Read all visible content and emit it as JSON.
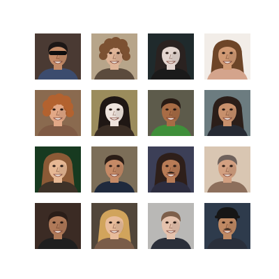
{
  "figure": {
    "rows": 4,
    "cols": 4,
    "tiles": [
      {
        "bg": "#4a3a33",
        "skin": "#c48b68",
        "hair": "#1d1716",
        "shirt": "#3c4c6e",
        "hair_style": "short",
        "glasses": true,
        "cap": false,
        "mustache": false
      },
      {
        "bg": "#b7a58a",
        "skin": "#dfb497",
        "hair": "#7c5132",
        "shirt": "#5b4b3d",
        "hair_style": "curly",
        "glasses": false,
        "cap": false,
        "mustache": false
      },
      {
        "bg": "#1f2a2c",
        "skin": "#e3d5cf",
        "hair": "#2a2220",
        "shirt": "#1a1a1a",
        "hair_style": "long",
        "glasses": false,
        "cap": false,
        "mustache": false
      },
      {
        "bg": "#f2ede8",
        "skin": "#d19a74",
        "hair": "#6d4528",
        "shirt": "#d4a48c",
        "hair_style": "long",
        "glasses": false,
        "cap": false,
        "mustache": false
      },
      {
        "bg": "#8a6a4f",
        "skin": "#e2a886",
        "hair": "#b3622f",
        "shirt": "#7f5a44",
        "hair_style": "curly",
        "glasses": false,
        "cap": false,
        "mustache": false
      },
      {
        "bg": "#9b8c5c",
        "skin": "#efe4dd",
        "hair": "#1f1714",
        "shirt": "#3a2d24",
        "hair_style": "long",
        "glasses": false,
        "cap": false,
        "mustache": false
      },
      {
        "bg": "#5d5b4b",
        "skin": "#a86c45",
        "hair": "#281b14",
        "shirt": "#3f8f3a",
        "hair_style": "short",
        "glasses": false,
        "cap": false,
        "mustache": false
      },
      {
        "bg": "#6c7c80",
        "skin": "#c8906c",
        "hair": "#2b1e19",
        "shirt": "#262a33",
        "hair_style": "long",
        "glasses": false,
        "cap": false,
        "mustache": false
      },
      {
        "bg": "#173a20",
        "skin": "#e6b894",
        "hair": "#8b5a36",
        "shirt": "#3e3228",
        "hair_style": "long",
        "glasses": false,
        "cap": false,
        "mustache": false
      },
      {
        "bg": "#7c6e58",
        "skin": "#c58a66",
        "hair": "#2a1d16",
        "shirt": "#1f2a3d",
        "hair_style": "short",
        "glasses": false,
        "cap": false,
        "mustache": false
      },
      {
        "bg": "#3c3f57",
        "skin": "#b87b56",
        "hair": "#2e1f1a",
        "shirt": "#2d2d3f",
        "hair_style": "long",
        "glasses": false,
        "cap": false,
        "mustache": true
      },
      {
        "bg": "#d9c6b2",
        "skin": "#d3a081",
        "hair": "#6f625c",
        "shirt": "#8d6f5c",
        "hair_style": "short",
        "glasses": false,
        "cap": false,
        "mustache": false
      },
      {
        "bg": "#3b2b24",
        "skin": "#b07a59",
        "hair": "#2a1d18",
        "shirt": "#1f1f1f",
        "hair_style": "short",
        "glasses": false,
        "cap": false,
        "mustache": false
      },
      {
        "bg": "#51463a",
        "skin": "#e8bc9b",
        "hair": "#d1a45c",
        "shirt": "#7a5c48",
        "hair_style": "long",
        "glasses": false,
        "cap": false,
        "mustache": false
      },
      {
        "bg": "#b9b8b6",
        "skin": "#e5c2ad",
        "hair": "#7d5f4b",
        "shirt": "#2b2f3a",
        "hair_style": "short",
        "glasses": false,
        "cap": false,
        "mustache": false
      },
      {
        "bg": "#2e3b4c",
        "skin": "#c08a64",
        "hair": "#1b1515",
        "shirt": "#2a2f3b",
        "hair_style": "short",
        "glasses": false,
        "cap": true,
        "mustache": true
      }
    ]
  }
}
